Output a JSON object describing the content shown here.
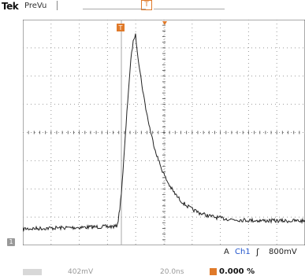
{
  "header": {
    "brand": "Tek",
    "mode": "PreVu",
    "trigger_position_marker": "T"
  },
  "graticule": {
    "divisions_x": 10,
    "divisions_y": 8
  },
  "markers": {
    "trigger_marker": "T",
    "ground_marker": "1"
  },
  "trigger_readout": {
    "label": "A",
    "channel": "Ch1",
    "slope": "ʃ",
    "level": "800mV"
  },
  "status_bar": {
    "ref": "",
    "vertical_scale": "402mV",
    "horizontal_scale": "20.0ns",
    "position_marker": "T",
    "position_percent": "0.000 %"
  },
  "colors": {
    "trace": "#222222",
    "grid": "#999999",
    "trigger": "#e07a2a",
    "channel": "#2255cc"
  }
}
